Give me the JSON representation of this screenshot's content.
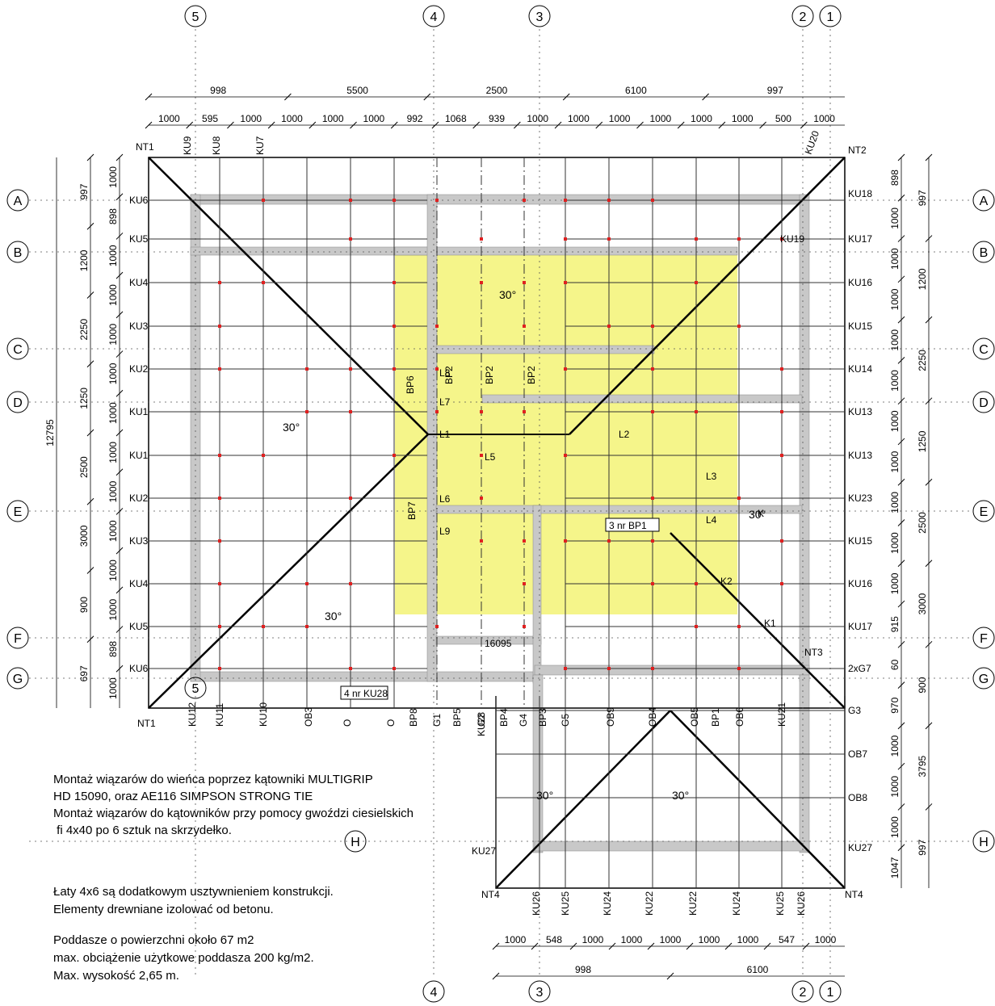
{
  "axes_vertical": {
    "ax5": "5",
    "ax4": "4",
    "ax3": "3",
    "ax2": "2",
    "ax1": "1"
  },
  "axes_horizontal": {
    "A": "A",
    "B": "B",
    "C": "C",
    "D": "D",
    "E": "E",
    "F": "F",
    "G": "G",
    "H": "H"
  },
  "dims_top_row1": [
    "998",
    "5500",
    "2500",
    "6100",
    "997"
  ],
  "dims_top_row2": [
    "1000",
    "595",
    "1000",
    "1000",
    "1000",
    "1000",
    "992",
    "1068",
    "939",
    "1000",
    "1000",
    "1000",
    "1000",
    "1000",
    "1000",
    "500",
    "1000"
  ],
  "dims_left_outer": [
    "997",
    "1200",
    "2250",
    "1250",
    "2500",
    "3000",
    "900",
    "697"
  ],
  "dims_left_total": "12795",
  "dims_left_inner": [
    "1000",
    "898",
    "1000",
    "1000",
    "1000",
    "1000",
    "1000",
    "1000",
    "1000",
    "1000",
    "1000",
    "1000",
    "898",
    "1000"
  ],
  "dims_right_inner": [
    "898",
    "1000",
    "1000",
    "1000",
    "1000",
    "1000",
    "1000",
    "1000",
    "1000",
    "1000",
    "1000",
    "915",
    "60",
    "970",
    "1000",
    "1000",
    "1000",
    "1047"
  ],
  "dims_right_outer": [
    "997",
    "1200",
    "2250",
    "1250",
    "2500",
    "3000",
    "900",
    "3795",
    "997"
  ],
  "dims_bottom_row1": [
    "1000",
    "548",
    "1000",
    "1000",
    "1000",
    "1000",
    "1000",
    "547",
    "1000"
  ],
  "dims_bottom_row2": [
    "998",
    "6100"
  ],
  "truss_labels": {
    "top": [
      "KU9",
      "KU8",
      "KU7",
      "KU20"
    ],
    "left": [
      "KU6",
      "KU5",
      "KU4",
      "KU3",
      "KU2",
      "KU1",
      "KU1",
      "KU2",
      "KU3",
      "KU4",
      "KU5",
      "KU6"
    ],
    "right": [
      "KU18",
      "KU17",
      "KU16",
      "KU15",
      "KU14",
      "KU13",
      "KU13",
      "KU23",
      "KU15",
      "KU16",
      "KU17",
      "2xG7",
      "G3",
      "OB7",
      "OB8",
      "KU27"
    ],
    "bottom_main": [
      "KU12",
      "KU11",
      "KU10",
      "OB3",
      "O",
      "O",
      "BP8",
      "G1",
      "BP5",
      "G2",
      "BP4",
      "G4",
      "BP3",
      "G5",
      "OB9",
      "OB4",
      "OB5",
      "BP1",
      "OB6",
      "KU21"
    ],
    "bottom_ext": [
      "KU26",
      "KU25",
      "KU24",
      "KU22",
      "KU22",
      "KU24",
      "KU25",
      "KU26",
      "KU28",
      "KU27"
    ],
    "corners": [
      "NT1",
      "NT2",
      "NT1",
      "NT3",
      "NT4",
      "NT4",
      "KU19",
      "K2",
      "K1"
    ],
    "inner": [
      "BP2",
      "BP2",
      "BP2",
      "BP6",
      "BP7",
      "L8",
      "L7",
      "L1",
      "L5",
      "L6",
      "L9",
      "L2",
      "L3",
      "L4",
      "K"
    ]
  },
  "callouts": {
    "ku28": "4 nr  KU28",
    "bp1": "3 nr  BP1",
    "len16095": "16095"
  },
  "slopes": [
    "30°",
    "30°",
    "30°",
    "30°",
    "30°",
    "30°"
  ],
  "notes": {
    "n1": "Montaż wiązarów do wieńca poprzez kątowniki MULTIGRIP",
    "n2": "HD 15090, oraz AE116 SIMPSON STRONG TIE",
    "n3": "Montaż wiązarów do kątowników przy pomocy gwoździ ciesielskich",
    "n4": " fi 4x40 po 6 sztuk na skrzydełko.",
    "n5": "Łaty 4x6 są dodatkowym usztywnieniem konstrukcji.",
    "n6": "Elementy drewniane izolować od betonu.",
    "n7": "Poddasze o powierzchni około 67 m2",
    "n8": "max. obciążenie użytkowe poddasza 200 kg/m2.",
    "n9": "Max. wysokość 2,65 m."
  },
  "colors": {
    "attic_fill": "#f5f58a",
    "wall_fill": "#c8c8c8",
    "line": "#000000",
    "marker": "#e02020"
  }
}
